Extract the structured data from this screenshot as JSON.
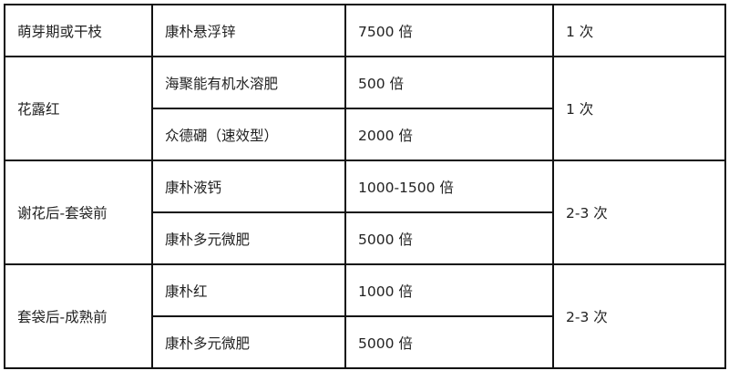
{
  "table": {
    "groups": [
      {
        "stage": "萌芽期或干枝",
        "count": "1 次",
        "items": [
          {
            "product": "康朴悬浮锌",
            "dilution": "7500 倍"
          }
        ]
      },
      {
        "stage": "花露红",
        "count": "1 次",
        "items": [
          {
            "product": "海聚能有机水溶肥",
            "dilution": "500 倍"
          },
          {
            "product": "众德硼（速效型）",
            "dilution": "2000 倍"
          }
        ]
      },
      {
        "stage": "谢花后-套袋前",
        "count": "2-3 次",
        "items": [
          {
            "product": "康朴液钙",
            "dilution": "1000-1500 倍"
          },
          {
            "product": "康朴多元微肥",
            "dilution": "5000 倍"
          }
        ]
      },
      {
        "stage": "套袋后-成熟前",
        "count": "2-3 次",
        "items": [
          {
            "product": "康朴红",
            "dilution": "1000 倍"
          },
          {
            "product": "康朴多元微肥",
            "dilution": "5000 倍"
          }
        ]
      }
    ]
  }
}
